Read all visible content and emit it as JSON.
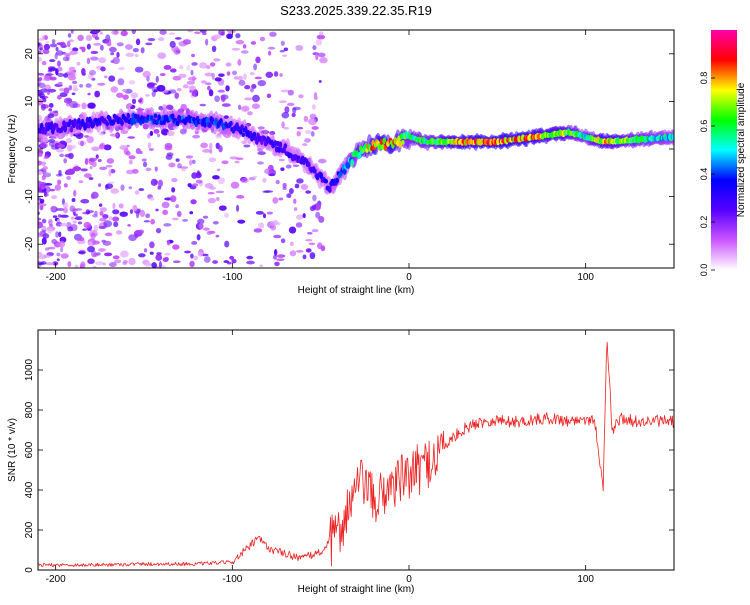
{
  "title": "S233.2025.339.22.35.R19",
  "chart_data": [
    {
      "type": "heatmap",
      "xlabel": "Height of straight line (km)",
      "ylabel": "Frequency (Hz)",
      "xlim": [
        -210,
        150
      ],
      "ylim": [
        -25,
        25
      ],
      "xticks": [
        -200,
        -100,
        0,
        100
      ],
      "yticks": [
        -20,
        -10,
        0,
        10,
        20
      ],
      "colorbar": {
        "label": "Normalized spectral amplitude",
        "range": [
          0.0,
          1.0
        ],
        "ticks": [
          "0.0",
          "0.2",
          "0.4",
          "0.6",
          "0.8"
        ],
        "stops": [
          "#ffffff",
          "#cc55ff",
          "#5500ff",
          "#0000ff",
          "#00ffff",
          "#00ff00",
          "#ffff00",
          "#ff0000",
          "#ff00aa"
        ]
      },
      "ridge": {
        "height_km": [
          -210,
          -190,
          -170,
          -150,
          -130,
          -110,
          -95,
          -85,
          -70,
          -55,
          -45,
          -38,
          -30,
          -20,
          -10,
          0,
          10,
          30,
          50,
          70,
          90,
          100,
          110,
          130,
          150
        ],
        "frequency_hz": [
          4,
          5,
          6,
          6.5,
          6,
          5.5,
          4,
          2,
          0,
          -4,
          -8,
          -5,
          -1,
          1,
          1,
          2.5,
          1.5,
          1.5,
          1.5,
          2.5,
          3.5,
          2.5,
          1.5,
          2,
          2.5
        ],
        "amplitude": [
          0.3,
          0.3,
          0.35,
          0.4,
          0.4,
          0.4,
          0.35,
          0.3,
          0.3,
          0.3,
          0.35,
          0.4,
          0.6,
          0.85,
          0.85,
          0.6,
          0.6,
          0.85,
          0.9,
          0.85,
          0.7,
          0.55,
          0.8,
          0.6,
          0.5
        ]
      }
    },
    {
      "type": "line",
      "xlabel": "Height of straight line (km)",
      "ylabel": "SNR (10 * v/v)",
      "xlim": [
        -210,
        150
      ],
      "ylim": [
        0,
        1200
      ],
      "xticks": [
        -200,
        -100,
        0,
        100
      ],
      "yticks": [
        0,
        200,
        400,
        600,
        800,
        1000
      ],
      "color": "#ee2222",
      "series": [
        {
          "name": "SNR",
          "x": [
            -210,
            -180,
            -150,
            -120,
            -100,
            -90,
            -85,
            -80,
            -70,
            -60,
            -50,
            -40,
            -35,
            -30,
            -25,
            -20,
            -10,
            0,
            10,
            20,
            30,
            40,
            50,
            60,
            70,
            80,
            90,
            100,
            105,
            110,
            112,
            115,
            120,
            130,
            140,
            150
          ],
          "y": [
            25,
            25,
            30,
            30,
            40,
            120,
            160,
            110,
            80,
            60,
            90,
            180,
            300,
            400,
            450,
            330,
            430,
            470,
            530,
            620,
            700,
            740,
            750,
            740,
            750,
            760,
            745,
            755,
            750,
            420,
            1170,
            700,
            760,
            740,
            745,
            740
          ]
        }
      ]
    }
  ]
}
